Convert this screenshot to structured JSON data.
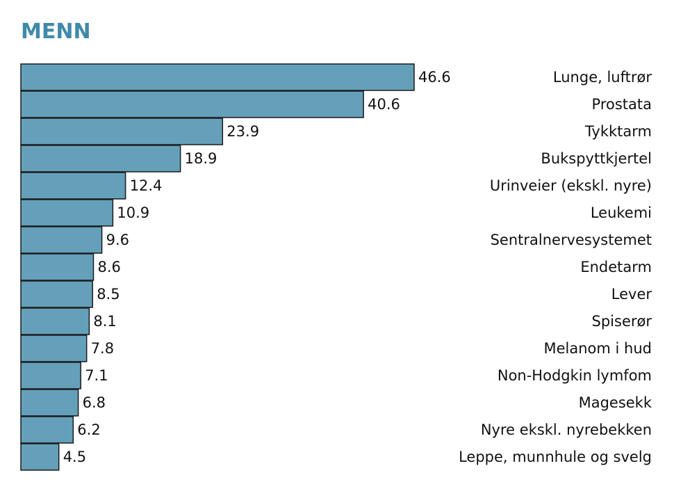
{
  "chart_data": {
    "type": "bar",
    "orientation": "horizontal",
    "title": "MENN",
    "categories": [
      "Lunge, luftrør",
      "Prostata",
      "Tykktarm",
      "Bukspyttkjertel",
      "Urinveier (ekskl. nyre)",
      "Leukemi",
      "Sentralnervesystemet",
      "Endetarm",
      "Lever",
      "Spiserør",
      "Melanom i hud",
      "Non-Hodgkin lymfom",
      "Magesekk",
      "Nyre ekskl. nyrebekken",
      "Leppe, munnhule og svelg"
    ],
    "values": [
      46.6,
      40.6,
      23.9,
      18.9,
      12.4,
      10.9,
      9.6,
      8.6,
      8.5,
      8.1,
      7.8,
      7.1,
      6.8,
      6.2,
      4.5
    ],
    "value_labels": [
      "46.6",
      "40.6",
      "23.9",
      "18.9",
      "12.4",
      "10.9",
      "9.6",
      "8.6",
      "8.5",
      "8.1",
      "7.8",
      "7.1",
      "6.8",
      "6.2",
      "4.5"
    ],
    "xlim": [
      0,
      46.6
    ],
    "grid": false,
    "legend": "none",
    "colors": {
      "bar": "#64a0ba",
      "bar_stroke": "#1a1a1a",
      "title": "#3f8aa8"
    }
  }
}
